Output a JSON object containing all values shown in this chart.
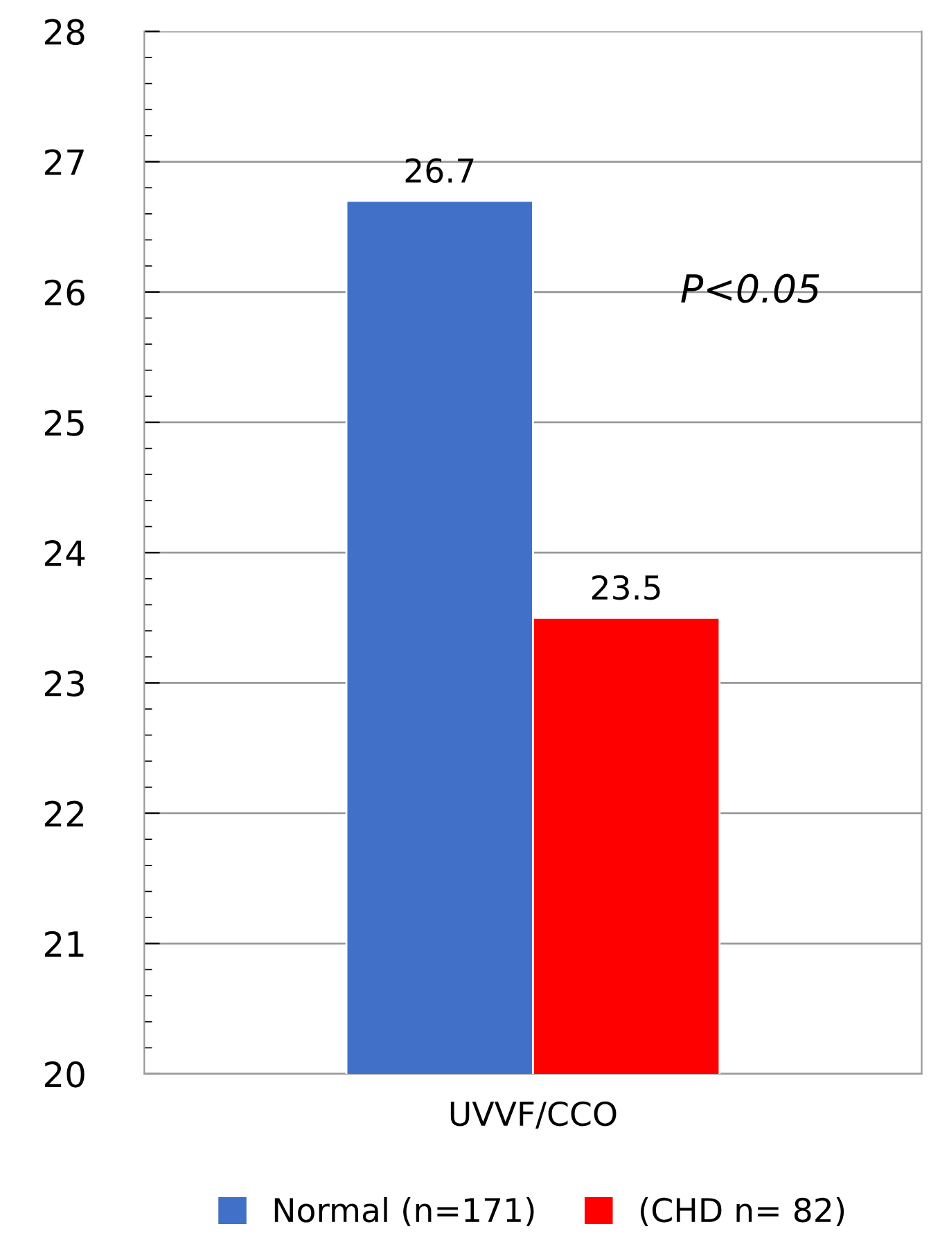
{
  "chart_data": {
    "type": "bar",
    "categories": [
      "UVVF/CCO"
    ],
    "series": [
      {
        "name": "Normal (n=171)",
        "color": "#4170c8",
        "values": [
          26.7
        ]
      },
      {
        "name": "(CHD n= 82)",
        "color": "#ff0000",
        "values": [
          23.5
        ]
      }
    ],
    "ylim": [
      20,
      28
    ],
    "yticks": [
      20,
      21,
      22,
      23,
      24,
      25,
      26,
      27,
      28
    ],
    "grid": "y",
    "data_labels": true,
    "legend": "bottom",
    "annotations": [
      "P<0.05"
    ]
  }
}
